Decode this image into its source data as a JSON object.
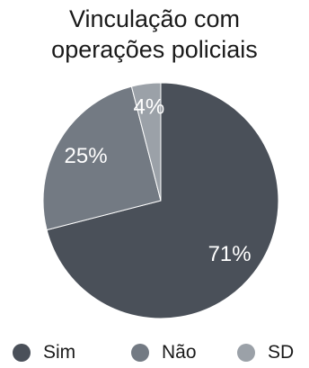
{
  "chart_data": {
    "type": "pie",
    "title_lines": [
      "Vinculação com",
      "operações policiais"
    ],
    "slices": [
      {
        "label": "Sim",
        "value": 71,
        "data_label": "71%",
        "color": "#4a5059"
      },
      {
        "label": "Não",
        "value": 25,
        "data_label": "25%",
        "color": "#737a83"
      },
      {
        "label": "SD",
        "value": 4,
        "data_label": "4%",
        "color": "#9ba1a8"
      }
    ],
    "legend_position": "bottom"
  }
}
